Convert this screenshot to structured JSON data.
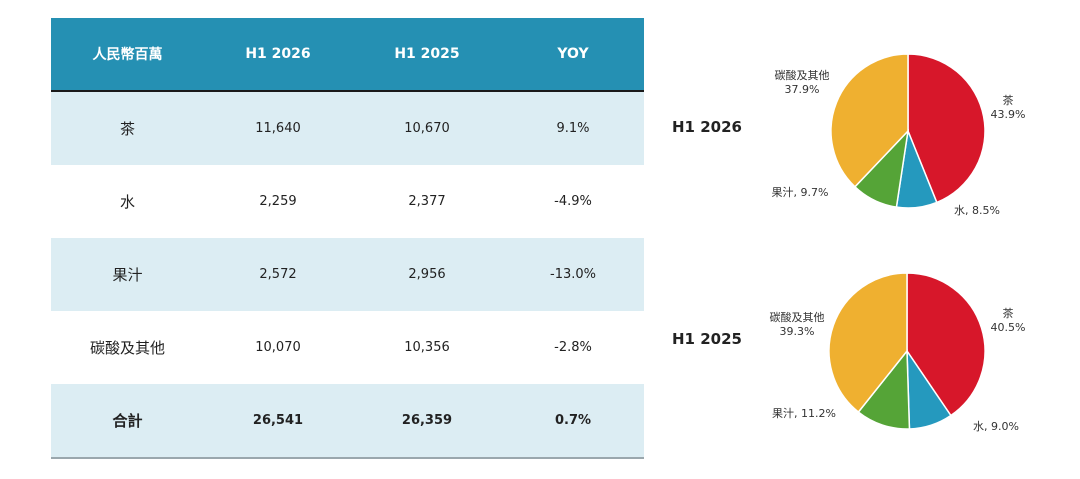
{
  "table": {
    "headers": [
      "人民幣百萬",
      "H1 2026",
      "H1 2025",
      "YOY"
    ],
    "rows": [
      {
        "name": "茶",
        "h1_2026": "11,640",
        "h1_2025": "10,670",
        "yoy": "9.1%"
      },
      {
        "name": "水",
        "h1_2026": "2,259",
        "h1_2025": "2,377",
        "yoy": "-4.9%"
      },
      {
        "name": "果汁",
        "h1_2026": "2,572",
        "h1_2025": "2,956",
        "yoy": "-13.0%"
      },
      {
        "name": "碳酸及其他",
        "h1_2026": "10,070",
        "h1_2025": "10,356",
        "yoy": "-2.8%"
      },
      {
        "name": "合計",
        "h1_2026": "26,541",
        "h1_2025": "26,359",
        "yoy": "0.7%"
      }
    ]
  },
  "colors": {
    "header_bg": "#2590b3",
    "shade_row": "#dcedf3",
    "茶": "#d7172a",
    "水": "#2599be",
    "果汁": "#55a437",
    "碳酸及其他": "#efb030"
  },
  "chart_data": [
    {
      "type": "pie",
      "title": "H1 2026",
      "categories": [
        "茶",
        "水",
        "果汁",
        "碳酸及其他"
      ],
      "values": [
        43.9,
        8.5,
        9.7,
        37.9
      ],
      "labels": [
        "茶\n43.9%",
        "水, 8.5%",
        "果汁, 9.7%",
        "碳酸及其他\n37.9%"
      ]
    },
    {
      "type": "pie",
      "title": "H1 2025",
      "categories": [
        "茶",
        "水",
        "果汁",
        "碳酸及其他"
      ],
      "values": [
        40.5,
        9.0,
        11.2,
        39.3
      ],
      "labels": [
        "茶\n40.5%",
        "水, 9.0%",
        "果汁, 11.2%",
        "碳酸及其他\n39.3%"
      ]
    }
  ]
}
